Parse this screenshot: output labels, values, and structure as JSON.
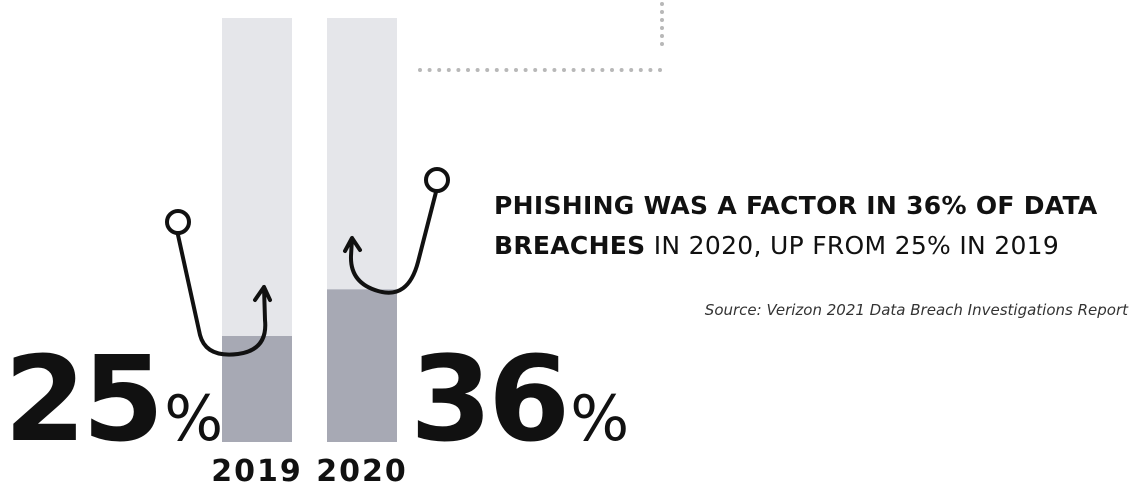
{
  "chart_data": {
    "type": "bar",
    "categories": [
      "2019",
      "2020"
    ],
    "values": [
      25,
      36
    ],
    "ylim": [
      0,
      100
    ],
    "unit": "%",
    "colors": {
      "fill": "#a7a9b4",
      "track": "#e5e6ea",
      "text": "#111111",
      "dots": "#b8b8b8"
    }
  },
  "value_labels": [
    {
      "number": "25",
      "unit": "%"
    },
    {
      "number": "36",
      "unit": "%"
    }
  ],
  "headline": {
    "line1_bold": "PHISHING WAS A FACTOR IN 36% OF DATA",
    "line2_bold": "BREACHES",
    "line2_rest": " IN 2020, UP FROM 25% IN 2019"
  },
  "source": "Source: Verizon 2021 Data Breach Investigations Report",
  "icons": [
    "fishing-hook-icon",
    "fishing-hook-icon"
  ]
}
